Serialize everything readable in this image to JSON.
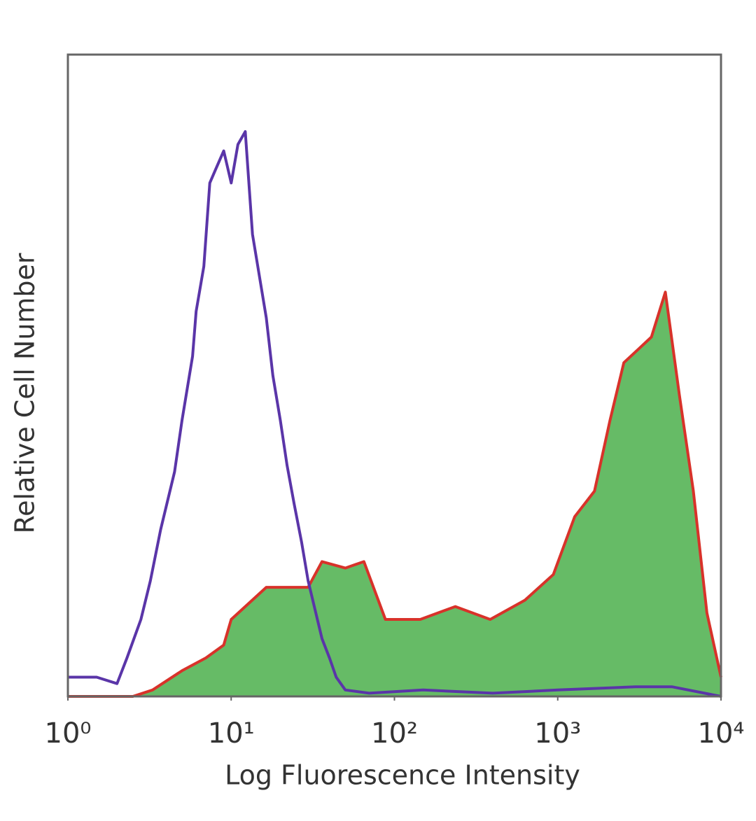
{
  "chart_data": {
    "type": "histogram-overlay",
    "x_label": "Log Fluorescence Intensity",
    "y_label": "Relative Cell Number",
    "xscale": "log",
    "xlim": [
      1,
      10000
    ],
    "ylim": [
      0,
      100
    ],
    "xticks": [
      {
        "value": 1,
        "label": "10⁰"
      },
      {
        "value": 10,
        "label": "10¹"
      },
      {
        "value": 100,
        "label": "10²"
      },
      {
        "value": 1000,
        "label": "10³"
      },
      {
        "value": 10000,
        "label": "10⁴"
      }
    ],
    "series": [
      {
        "color": "#5a35a8",
        "filled": false,
        "x": [
          1,
          1.5,
          2,
          2.3,
          2.8,
          3.2,
          3.7,
          4.5,
          5,
          5.8,
          6.1,
          6.8,
          7.4,
          8,
          9,
          10,
          11,
          12.2,
          13.5,
          15,
          16.4,
          18,
          20,
          22,
          24.3,
          27,
          29.6,
          33,
          36,
          40,
          44,
          50,
          70,
          150,
          400,
          1000,
          3000,
          5000,
          10000
        ],
        "values": [
          3,
          3,
          2,
          6,
          12,
          18,
          26,
          35,
          43,
          53,
          60,
          67,
          80,
          82,
          85,
          80,
          86,
          88,
          72,
          65,
          59,
          50,
          43,
          36,
          30,
          24,
          18,
          13,
          9,
          6,
          3,
          1,
          0.5,
          1,
          0.5,
          1,
          1.5,
          1.5,
          0
        ]
      },
      {
        "color": "#d8322a",
        "fill_color": "#66bb66",
        "filled": true,
        "x": [
          1,
          2.5,
          3.3,
          5,
          7,
          9,
          10,
          16.4,
          29.6,
          36,
          50,
          65,
          88,
          144,
          236,
          386,
          630,
          940,
          1270,
          1680,
          2090,
          2540,
          3090,
          3750,
          4560,
          5560,
          6770,
          8200,
          10000
        ],
        "values": [
          0,
          0,
          1,
          4,
          6,
          8,
          12,
          17,
          17,
          21,
          20,
          21,
          12,
          12,
          14,
          12,
          15,
          19,
          28,
          32,
          43,
          52,
          54,
          56,
          63,
          47,
          32,
          13,
          3
        ]
      }
    ]
  }
}
